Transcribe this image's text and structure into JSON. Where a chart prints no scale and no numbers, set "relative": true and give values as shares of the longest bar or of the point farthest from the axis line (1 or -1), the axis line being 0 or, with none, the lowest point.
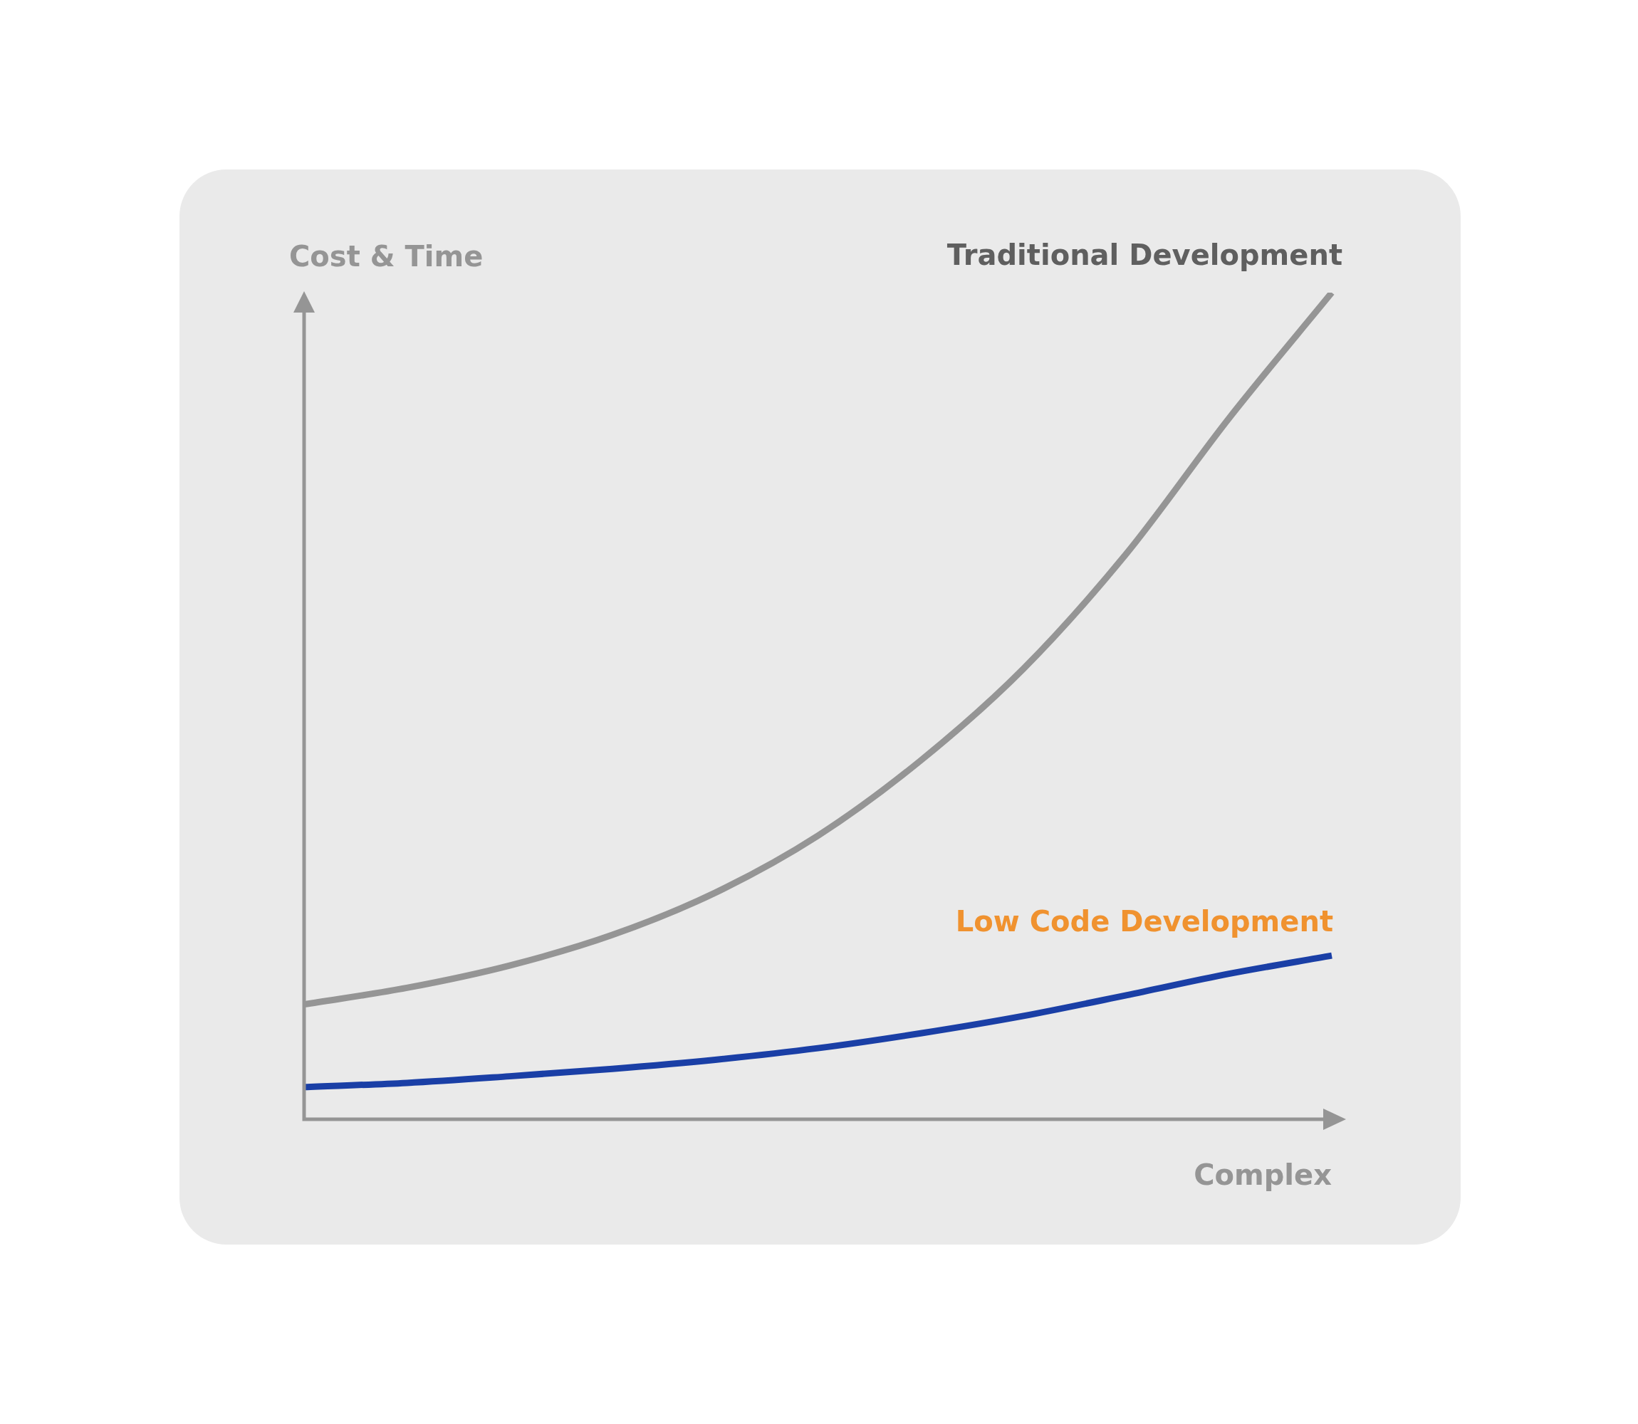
{
  "chart_data": {
    "type": "line",
    "relative": true,
    "xlabel": "Complex",
    "ylabel": "Cost & Time",
    "categories": [
      null,
      null,
      null,
      null,
      null,
      null,
      null,
      null,
      null,
      null,
      null
    ],
    "legend": false,
    "marker": "none",
    "series": [
      {
        "name": "Traditional Development",
        "color": "#959595",
        "values": [
          0.139,
          0.159,
          0.186,
          0.223,
          0.274,
          0.343,
          0.434,
          0.545,
          0.684,
          0.848,
          1.0
        ]
      },
      {
        "name": "Low Code Development",
        "color": "#1a3fa6",
        "values": [
          0.039,
          0.044,
          0.052,
          0.061,
          0.072,
          0.086,
          0.104,
          0.125,
          0.15,
          0.176,
          0.198
        ]
      }
    ]
  }
}
